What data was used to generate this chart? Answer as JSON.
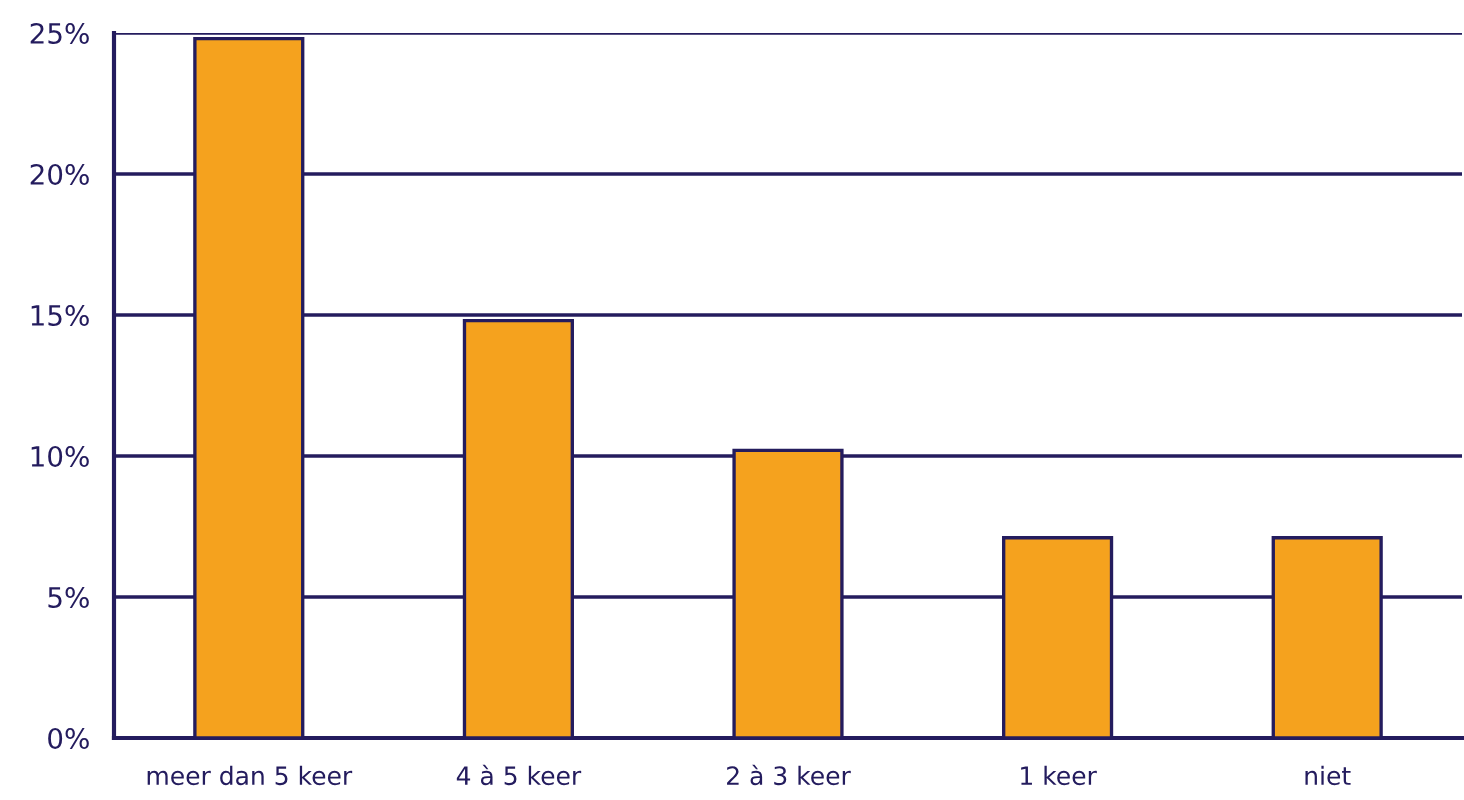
{
  "chart_data": {
    "type": "bar",
    "categories": [
      "meer dan 5 keer",
      "4 à 5 keer",
      "2 à 3 keer",
      "1 keer",
      "niet"
    ],
    "values": [
      24.8,
      14.8,
      10.2,
      7.1,
      7.1
    ],
    "color": "#f5a21e",
    "ylim": [
      0,
      25
    ],
    "yticks": [
      {
        "value": 0,
        "label": "0%"
      },
      {
        "value": 5,
        "label": "5%"
      },
      {
        "value": 10,
        "label": "10%"
      },
      {
        "value": 15,
        "label": "15%"
      },
      {
        "value": 20,
        "label": "20%"
      },
      {
        "value": 25,
        "label": "25%"
      }
    ],
    "grid": "y",
    "legend": false
  }
}
